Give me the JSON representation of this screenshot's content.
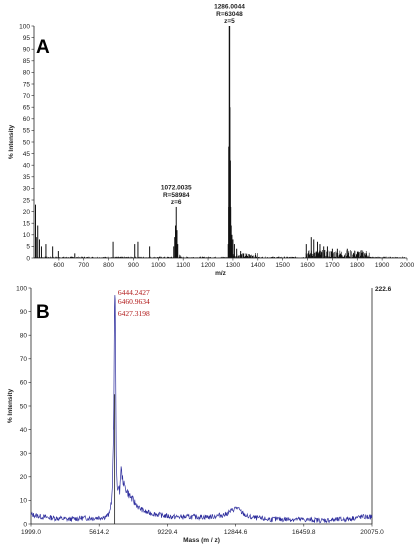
{
  "chart_data": [
    {
      "panel_label": "A",
      "type": "line",
      "ylabel": "% Intensity",
      "xlabel": "m/z",
      "xlim": [
        500,
        2000
      ],
      "ylim": [
        0,
        100
      ],
      "x_ticks": [
        600,
        700,
        800,
        900,
        1000,
        1100,
        1200,
        1300,
        1400,
        1500,
        1600,
        1700,
        1800,
        1900,
        2000
      ],
      "y_ticks": [
        0,
        5,
        10,
        15,
        20,
        25,
        30,
        35,
        40,
        45,
        50,
        55,
        60,
        65,
        70,
        75,
        80,
        85,
        90,
        95,
        100
      ],
      "color": "#111111",
      "peaks": [
        {
          "x": 506,
          "y": 23
        },
        {
          "x": 509,
          "y": 9
        },
        {
          "x": 515,
          "y": 14
        },
        {
          "x": 522,
          "y": 8
        },
        {
          "x": 530,
          "y": 5
        },
        {
          "x": 548,
          "y": 6
        },
        {
          "x": 575,
          "y": 5
        },
        {
          "x": 598,
          "y": 3
        },
        {
          "x": 664,
          "y": 2
        },
        {
          "x": 818,
          "y": 7
        },
        {
          "x": 905,
          "y": 6
        },
        {
          "x": 918,
          "y": 7
        },
        {
          "x": 965,
          "y": 5
        },
        {
          "x": 1062,
          "y": 5
        },
        {
          "x": 1066,
          "y": 9
        },
        {
          "x": 1069,
          "y": 14
        },
        {
          "x": 1072,
          "y": 22
        },
        {
          "x": 1075,
          "y": 12
        },
        {
          "x": 1078,
          "y": 6
        },
        {
          "x": 1281,
          "y": 6
        },
        {
          "x": 1283,
          "y": 22
        },
        {
          "x": 1284,
          "y": 48
        },
        {
          "x": 1286,
          "y": 100
        },
        {
          "x": 1287,
          "y": 65
        },
        {
          "x": 1289,
          "y": 42
        },
        {
          "x": 1291,
          "y": 22
        },
        {
          "x": 1293,
          "y": 14
        },
        {
          "x": 1296,
          "y": 10
        },
        {
          "x": 1300,
          "y": 8
        },
        {
          "x": 1306,
          "y": 6
        },
        {
          "x": 1315,
          "y": 4
        },
        {
          "x": 1331,
          "y": 3
        },
        {
          "x": 1595,
          "y": 6
        },
        {
          "x": 1615,
          "y": 9
        },
        {
          "x": 1625,
          "y": 8
        },
        {
          "x": 1640,
          "y": 7
        },
        {
          "x": 1650,
          "y": 6
        },
        {
          "x": 1665,
          "y": 5
        },
        {
          "x": 1680,
          "y": 5
        },
        {
          "x": 1700,
          "y": 4
        },
        {
          "x": 1720,
          "y": 4
        },
        {
          "x": 1760,
          "y": 4
        },
        {
          "x": 1790,
          "y": 3
        },
        {
          "x": 1830,
          "y": 2
        }
      ],
      "annotations": [
        {
          "x": 1286,
          "y": 100,
          "lines": [
            "1286.0044",
            "R=63048",
            "z=5"
          ]
        },
        {
          "x": 1072,
          "y": 22,
          "lines": [
            "1072.0035",
            "R=58984",
            "z=6"
          ]
        }
      ]
    },
    {
      "panel_label": "B",
      "type": "line",
      "ylabel": "% Intensity",
      "xlabel": "Mass (m / z)",
      "xlim": [
        1999.0,
        20075.0
      ],
      "ylim": [
        0,
        100
      ],
      "x_ticks": [
        "1999.0",
        "5614.2",
        "9229.4",
        "12844.6",
        "16459.8",
        "20075.0"
      ],
      "y_ticks": [
        0,
        10,
        20,
        30,
        40,
        50,
        60,
        70,
        80,
        90,
        100
      ],
      "max_intensity_label": "222.6",
      "color": "#2f2f9e",
      "points": [
        {
          "x": 1999,
          "y": 4
        },
        {
          "x": 2600,
          "y": 3
        },
        {
          "x": 3300,
          "y": 2.5
        },
        {
          "x": 4000,
          "y": 2
        },
        {
          "x": 4700,
          "y": 2.5
        },
        {
          "x": 5300,
          "y": 2.5
        },
        {
          "x": 5900,
          "y": 3
        },
        {
          "x": 6150,
          "y": 4
        },
        {
          "x": 6300,
          "y": 12
        },
        {
          "x": 6380,
          "y": 40
        },
        {
          "x": 6427,
          "y": 92
        },
        {
          "x": 6444,
          "y": 97
        },
        {
          "x": 6461,
          "y": 95
        },
        {
          "x": 6490,
          "y": 60
        },
        {
          "x": 6520,
          "y": 25
        },
        {
          "x": 6560,
          "y": 17
        },
        {
          "x": 6620,
          "y": 15
        },
        {
          "x": 6700,
          "y": 14
        },
        {
          "x": 6770,
          "y": 24
        },
        {
          "x": 6830,
          "y": 20
        },
        {
          "x": 6950,
          "y": 16
        },
        {
          "x": 7150,
          "y": 13
        },
        {
          "x": 7400,
          "y": 10
        },
        {
          "x": 7700,
          "y": 7
        },
        {
          "x": 8100,
          "y": 5
        },
        {
          "x": 8700,
          "y": 4
        },
        {
          "x": 9500,
          "y": 3
        },
        {
          "x": 10500,
          "y": 3
        },
        {
          "x": 11500,
          "y": 3
        },
        {
          "x": 12300,
          "y": 4
        },
        {
          "x": 12700,
          "y": 6
        },
        {
          "x": 12900,
          "y": 7
        },
        {
          "x": 13150,
          "y": 5
        },
        {
          "x": 13500,
          "y": 3
        },
        {
          "x": 14500,
          "y": 2
        },
        {
          "x": 16000,
          "y": 2
        },
        {
          "x": 17500,
          "y": 1.5
        },
        {
          "x": 18700,
          "y": 2
        },
        {
          "x": 19500,
          "y": 3
        },
        {
          "x": 20075,
          "y": 3
        }
      ],
      "annotations": [
        {
          "x": 6444,
          "lines": [
            "6444.2427",
            "6460.9634"
          ]
        },
        {
          "x": 6427,
          "lines": [
            "6427.3198"
          ]
        }
      ]
    }
  ]
}
